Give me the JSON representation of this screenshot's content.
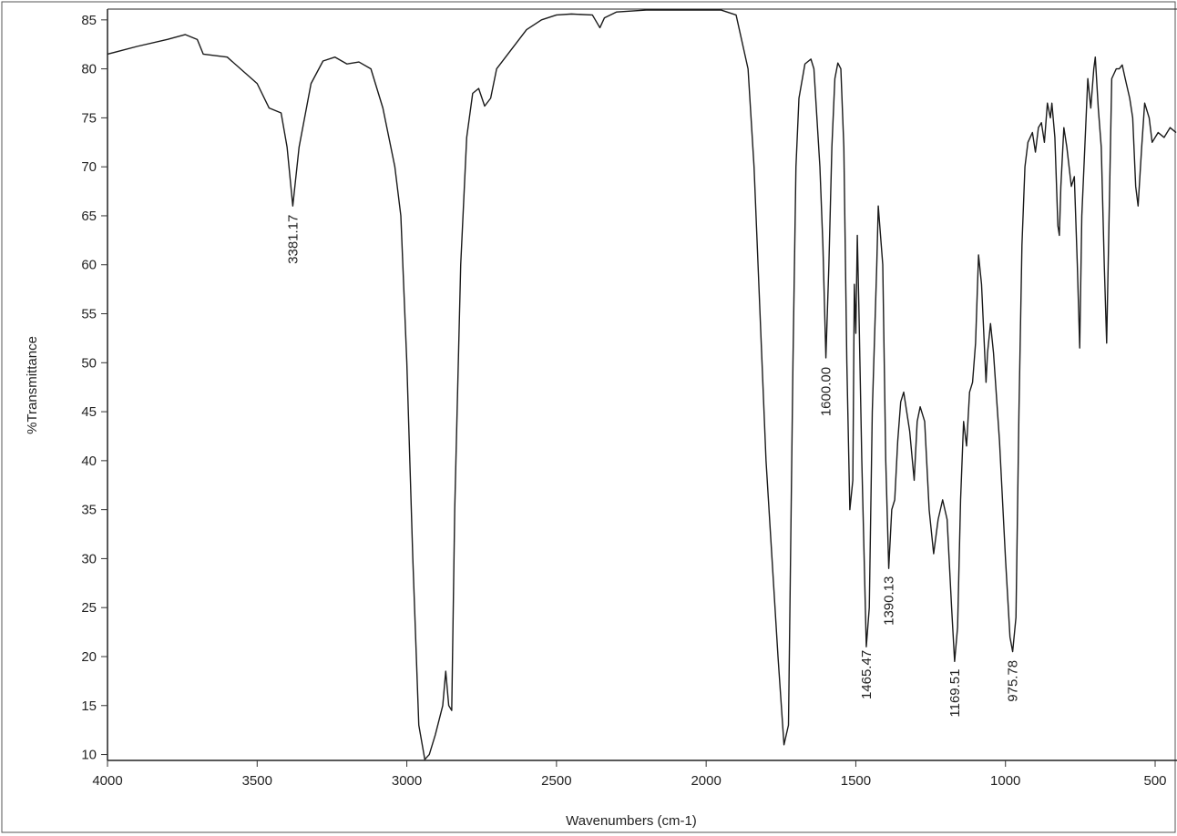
{
  "chart_data": {
    "type": "line",
    "x_label": "Wavenumbers (cm-1)",
    "y_label": "%Transmittance",
    "xlim": [
      4000,
      427
    ],
    "ylim": [
      9.4,
      86.1
    ],
    "xticks": [
      4000,
      3500,
      3000,
      2500,
      2000,
      1500,
      1000,
      500
    ],
    "yticks": [
      10,
      15,
      20,
      25,
      30,
      35,
      40,
      45,
      50,
      55,
      60,
      65,
      70,
      75,
      80,
      85
    ],
    "color": "#1a1a1a",
    "x": [
      4000,
      3900,
      3800,
      3740,
      3700,
      3680,
      3600,
      3500,
      3460,
      3420,
      3400,
      3381,
      3360,
      3320,
      3280,
      3240,
      3200,
      3160,
      3120,
      3080,
      3060,
      3040,
      3020,
      3000,
      2980,
      2960,
      2940,
      2925,
      2905,
      2880,
      2870,
      2860,
      2850,
      2840,
      2820,
      2800,
      2780,
      2760,
      2740,
      2720,
      2700,
      2650,
      2600,
      2550,
      2500,
      2450,
      2380,
      2355,
      2340,
      2300,
      2200,
      2100,
      2000,
      1950,
      1900,
      1860,
      1840,
      1820,
      1800,
      1780,
      1760,
      1740,
      1725,
      1710,
      1700,
      1690,
      1670,
      1650,
      1640,
      1620,
      1610,
      1600,
      1590,
      1580,
      1570,
      1560,
      1550,
      1540,
      1530,
      1520,
      1510,
      1505,
      1500,
      1495,
      1490,
      1480,
      1465,
      1455,
      1445,
      1430,
      1425,
      1410,
      1400,
      1390,
      1380,
      1370,
      1360,
      1350,
      1340,
      1320,
      1305,
      1295,
      1285,
      1270,
      1255,
      1240,
      1225,
      1210,
      1195,
      1180,
      1170,
      1160,
      1150,
      1140,
      1130,
      1120,
      1110,
      1100,
      1090,
      1080,
      1065,
      1060,
      1050,
      1040,
      1020,
      1000,
      985,
      976,
      965,
      955,
      945,
      935,
      925,
      910,
      900,
      890,
      880,
      870,
      860,
      850,
      845,
      835,
      825,
      820,
      815,
      805,
      795,
      780,
      770,
      760,
      752,
      745,
      735,
      725,
      715,
      705,
      700,
      690,
      680,
      670,
      662,
      655,
      645,
      630,
      620,
      610,
      600,
      585,
      575,
      565,
      557,
      545,
      535,
      520,
      510,
      490,
      470,
      450,
      430
    ],
    "y": [
      81.5,
      82.3,
      83.0,
      83.5,
      83,
      81.5,
      81.2,
      78.5,
      76,
      75.5,
      72,
      66,
      72,
      78.5,
      80.8,
      81.2,
      80.5,
      80.7,
      80,
      76,
      73,
      70,
      65,
      50,
      30,
      13,
      9.5,
      10,
      12,
      15,
      18.5,
      15,
      14.5,
      35,
      60,
      73,
      77.5,
      78,
      76.2,
      77,
      80,
      82,
      84,
      85,
      85.5,
      85.6,
      85.5,
      84.2,
      85.2,
      85.8,
      86,
      86,
      86,
      86,
      85.5,
      80,
      70,
      55,
      40,
      30,
      20,
      11,
      13,
      50,
      70,
      77,
      80.5,
      81,
      80,
      70,
      62,
      50.5,
      60,
      72,
      79,
      80.6,
      80,
      72,
      50,
      35,
      38,
      58,
      53,
      63,
      56,
      40,
      21,
      25,
      45,
      60,
      66,
      60,
      40,
      29,
      35,
      36,
      42,
      46,
      47,
      43,
      38,
      44,
      45.5,
      44,
      35,
      30.5,
      34,
      36,
      34,
      25,
      19.5,
      23,
      36,
      44,
      41.5,
      47,
      48,
      52,
      61,
      58,
      48,
      51,
      54,
      51,
      42,
      30,
      22,
      20.5,
      24,
      45,
      62,
      70,
      72.5,
      73.5,
      71.5,
      74,
      74.5,
      72.5,
      76.5,
      75,
      76.5,
      73,
      64,
      63,
      68,
      74,
      72,
      68,
      69,
      60,
      51.5,
      65,
      72,
      79,
      76,
      80,
      81.2,
      76,
      72,
      60,
      52,
      63,
      79,
      80,
      80,
      80.4,
      79,
      77,
      75,
      68,
      66,
      72,
      76.5,
      75,
      72.5,
      73.5,
      73,
      74,
      73.5
    ],
    "peak_labels": [
      "3381.17",
      "1600.00",
      "1465.47",
      "1390.13",
      "1169.51",
      "975.78"
    ]
  }
}
